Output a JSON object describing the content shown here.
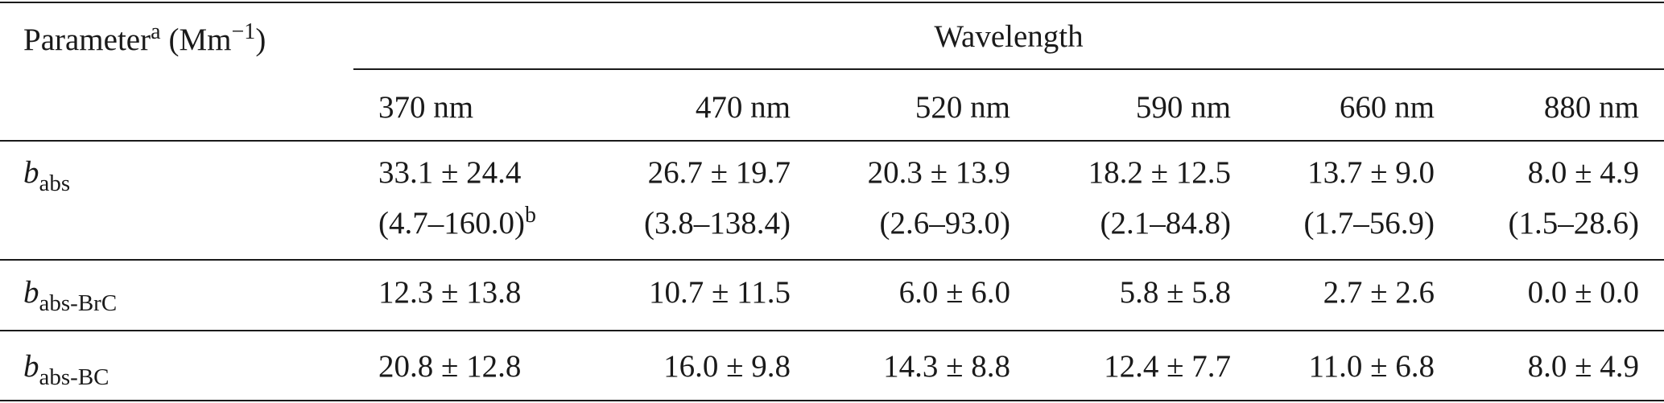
{
  "header": {
    "parameter": "Parameter",
    "parameter_note": "a",
    "unit": "(Mm",
    "unit_exponent": "−1",
    "unit_close": ")",
    "group": "Wavelength",
    "columns": [
      "370 nm",
      "470 nm",
      "520 nm",
      "590 nm",
      "660 nm",
      "880 nm"
    ]
  },
  "rows": [
    {
      "symbol": "b",
      "subscript": "abs",
      "cells": [
        {
          "mean": "33.1 ± 24.4",
          "range": "(4.7–160.0)",
          "note": "b"
        },
        {
          "mean": "26.7 ± 19.7",
          "range": "(3.8–138.4)"
        },
        {
          "mean": "20.3 ± 13.9",
          "range": "(2.6–93.0)"
        },
        {
          "mean": "18.2 ± 12.5",
          "range": "(2.1–84.8)"
        },
        {
          "mean": "13.7 ± 9.0",
          "range": "(1.7–56.9)"
        },
        {
          "mean": "8.0 ± 4.9",
          "range": "(1.5–28.6)"
        }
      ]
    },
    {
      "symbol": "b",
      "subscript": "abs-BrC",
      "cells": [
        {
          "mean": "12.3 ± 13.8"
        },
        {
          "mean": "10.7 ± 11.5"
        },
        {
          "mean": "6.0 ± 6.0"
        },
        {
          "mean": "5.8 ± 5.8"
        },
        {
          "mean": "2.7 ± 2.6"
        },
        {
          "mean": "0.0 ± 0.0"
        }
      ]
    },
    {
      "symbol": "b",
      "subscript": "abs-BC",
      "cells": [
        {
          "mean": "20.8 ± 12.8"
        },
        {
          "mean": "16.0 ± 9.8"
        },
        {
          "mean": "14.3 ± 8.8"
        },
        {
          "mean": "12.4 ± 7.7"
        },
        {
          "mean": "11.0 ± 6.8"
        },
        {
          "mean": "8.0 ± 4.9"
        }
      ]
    }
  ]
}
